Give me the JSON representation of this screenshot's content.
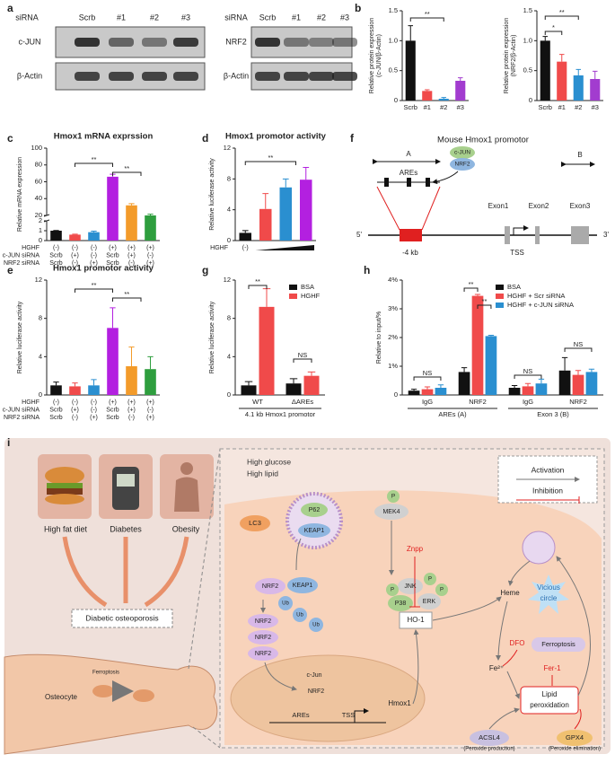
{
  "panel_labels": [
    "a",
    "b",
    "c",
    "d",
    "e",
    "f",
    "g",
    "h",
    "i"
  ],
  "blots": [
    {
      "header": "siRNA",
      "lanes": [
        "Scrb",
        "#1",
        "#2",
        "#3"
      ],
      "rows": [
        "c-JUN",
        "β-Actin"
      ]
    },
    {
      "header": "siRNA",
      "lanes": [
        "Scrb",
        "#1",
        "#2",
        "#3"
      ],
      "rows": [
        "NRF2",
        "β-Actin"
      ]
    }
  ],
  "chart_data": [
    {
      "type": "bar",
      "ylabel": [
        "Relative protein expression",
        "(c-JUN/β-Actin)"
      ],
      "categories": [
        "Scrb",
        "#1",
        "#2",
        "#3"
      ],
      "values": [
        1.0,
        0.16,
        0.03,
        0.33
      ],
      "errors": [
        0.25,
        0.02,
        0.02,
        0.05
      ],
      "colors": [
        "#111111",
        "#f04a4a",
        "#2a8fd0",
        "#a23ccf"
      ],
      "ylim": [
        0,
        1.5
      ],
      "yticks": [
        0,
        0.5,
        {
          "value": 1,
          "label": "1.0"
        },
        1.5
      ],
      "annotations": [
        "**"
      ]
    },
    {
      "type": "bar",
      "ylabel": [
        "Relative protein expression",
        "(NRF2/β-Actin)"
      ],
      "categories": [
        "Scrb",
        "#1",
        "#2",
        "#3"
      ],
      "values": [
        1.0,
        0.65,
        0.42,
        0.36
      ],
      "errors": [
        0.07,
        0.12,
        0.1,
        0.13
      ],
      "colors": [
        "#111111",
        "#f04a4a",
        "#2a8fd0",
        "#a23ccf"
      ],
      "ylim": [
        0,
        1.5
      ],
      "yticks": [
        0,
        0.5,
        {
          "value": 1,
          "label": "1.0"
        },
        1.5
      ],
      "annotations": [
        "*",
        "**"
      ]
    },
    {
      "type": "bar",
      "title": "Hmox1 mRNA exprssion",
      "ylabel": [
        "Relative mRNA expression"
      ],
      "values": [
        1.0,
        0.6,
        0.85,
        66,
        32,
        20
      ],
      "errors": [
        0.02,
        0.05,
        0.1,
        3,
        2,
        1.5
      ],
      "colors": [
        "#111111",
        "#f04a4a",
        "#2a8fd0",
        "#b320e0",
        "#f39b2a",
        "#2e9e3e"
      ],
      "ylim": [
        0,
        100
      ],
      "axis_break": [
        2,
        20
      ],
      "yticks": [
        0,
        1,
        2,
        20,
        40,
        60,
        80,
        100
      ],
      "table": [
        {
          "label": "HGHF",
          "cells": [
            "(-)",
            "(-)",
            "(-)",
            "(+)",
            "(+)",
            "(+)"
          ]
        },
        {
          "label": "c-JUN siRNA",
          "cells": [
            "Scrb",
            "(+)",
            "(-)",
            "Scrb",
            "(+)",
            "(-)"
          ]
        },
        {
          "label": "NRF2 siRNA",
          "cells": [
            "Scrb",
            "(-)",
            "(+)",
            "Scrb",
            "(-)",
            "(+)"
          ]
        }
      ],
      "annotations": [
        "**",
        "**"
      ]
    },
    {
      "type": "bar",
      "title": "Hmox1 promotor activity",
      "ylabel": [
        "Relative luciferase activity"
      ],
      "values": [
        1.0,
        4.1,
        6.9,
        7.9
      ],
      "errors": [
        0.3,
        2.0,
        1.1,
        1.6
      ],
      "colors": [
        "#111111",
        "#f04a4a",
        "#2a8fd0",
        "#b320e0"
      ],
      "ylim": [
        0,
        12
      ],
      "yticks": [
        0,
        4,
        8,
        12
      ],
      "table": [
        {
          "label": "HGHF",
          "cells": [
            "(-)",
            null,
            null,
            null
          ]
        }
      ],
      "annotations": [
        "**"
      ]
    },
    {
      "type": "bar",
      "title": "Hmox1 promotor activity",
      "ylabel": [
        "Relative luciferase activity"
      ],
      "values": [
        1.0,
        0.9,
        1.0,
        7.0,
        3.0,
        2.7
      ],
      "errors": [
        0.35,
        0.35,
        0.6,
        2.1,
        2.0,
        1.3
      ],
      "colors": [
        "#111111",
        "#f04a4a",
        "#2a8fd0",
        "#b320e0",
        "#f39b2a",
        "#2e9e3e"
      ],
      "ylim": [
        0,
        12
      ],
      "yticks": [
        0,
        4,
        8,
        12
      ],
      "table": [
        {
          "label": "HGHF",
          "cells": [
            "(-)",
            "(-)",
            "(-)",
            "(+)",
            "(+)",
            "(+)"
          ]
        },
        {
          "label": "c-JUN siRNA",
          "cells": [
            "Scrb",
            "(+)",
            "(-)",
            "Scrb",
            "(+)",
            "(-)"
          ]
        },
        {
          "label": "NRF2 siRNA",
          "cells": [
            "Scrb",
            "(-)",
            "(+)",
            "Scrb",
            "(-)",
            "(+)"
          ]
        }
      ],
      "annotations": [
        "**",
        "**"
      ]
    },
    {
      "type": "bar",
      "ylabel": [
        "Relative luciferase activity"
      ],
      "categories": [
        "WT",
        "ΔAREs"
      ],
      "series": [
        {
          "name": "BSA",
          "color": "#111111",
          "values": [
            1.0,
            1.2
          ],
          "errors": [
            0.4,
            0.5
          ]
        },
        {
          "name": "HGHF",
          "color": "#f04a4a",
          "values": [
            9.2,
            2.0
          ],
          "errors": [
            1.9,
            0.4
          ]
        }
      ],
      "xlabel": "4.1 kb Hmox1 promotor",
      "ylim": [
        0,
        12
      ],
      "yticks": [
        0,
        4,
        8,
        12
      ],
      "legend": "upper right",
      "annotations": [
        "**",
        "NS"
      ]
    },
    {
      "type": "bar",
      "ylabel": [
        "Relative to input/%"
      ],
      "categories": [
        "IgG",
        "NRF2",
        "IgG",
        "NRF2"
      ],
      "group_labels": [
        "AREs (A)",
        "Exon 3 (B)"
      ],
      "series": [
        {
          "name": "BSA",
          "color": "#111111",
          "values": [
            0.15,
            0.8,
            0.25,
            0.85
          ],
          "errors": [
            0.05,
            0.15,
            0.08,
            0.45
          ]
        },
        {
          "name": "HGHF + Scr siRNA",
          "color": "#f04a4a",
          "values": [
            0.2,
            3.45,
            0.3,
            0.7
          ],
          "errors": [
            0.08,
            0.05,
            0.1,
            0.15
          ]
        },
        {
          "name": "HGHF + c-JUN siRNA",
          "color": "#2a8fd0",
          "values": [
            0.25,
            2.05,
            0.4,
            0.8
          ],
          "errors": [
            0.1,
            0.03,
            0.15,
            0.1
          ]
        }
      ],
      "ylim": [
        0,
        4
      ],
      "yticks": [
        0,
        {
          "value": 1,
          "label": "1%"
        },
        {
          "value": 2,
          "label": "2%"
        },
        {
          "value": 3,
          "label": "3%"
        },
        {
          "value": 4,
          "label": "4%"
        }
      ],
      "legend": "upper right",
      "annotations": [
        "NS",
        "**",
        "**",
        "NS",
        "NS"
      ]
    }
  ],
  "promoter": {
    "title": "Mouse Hmox1 promotor",
    "labels": [
      "A",
      "AREs",
      "c-JUN",
      "NRF2",
      "B",
      "Exon1",
      "Exon2",
      "Exon3",
      "5'",
      "3'",
      "-4 kb",
      "TSS"
    ]
  },
  "schematic": {
    "labels": [
      "High fat diet",
      "Diabetes",
      "Obesity",
      "Diabetic osteoporosis",
      "Osteocyte",
      "Ferroptosis",
      "High glucose",
      "High lipid",
      "Activation",
      "Inhibition",
      "LC3",
      "P62",
      "KEAP1",
      "P",
      "MEK4",
      "Znpp",
      "NRF2",
      "KEAP1",
      "Ub",
      "Ub",
      "Ub",
      "P",
      "JNK",
      "P",
      "P",
      "P38",
      "ERK",
      "HO-1",
      "Heme",
      "Vicious",
      "circle",
      "DFO",
      "Ferroptosis",
      "Fe²⁺",
      "Fer-1",
      "Lipid",
      "peroxidation",
      "NRF2",
      "NRF2",
      "NRF2",
      "c-Jun",
      "NRF2",
      "AREs",
      "TSS",
      "Hmox1",
      "ACSL4",
      "(Peroxide production)",
      "GPX4",
      "(Peroxide elimination)"
    ]
  }
}
